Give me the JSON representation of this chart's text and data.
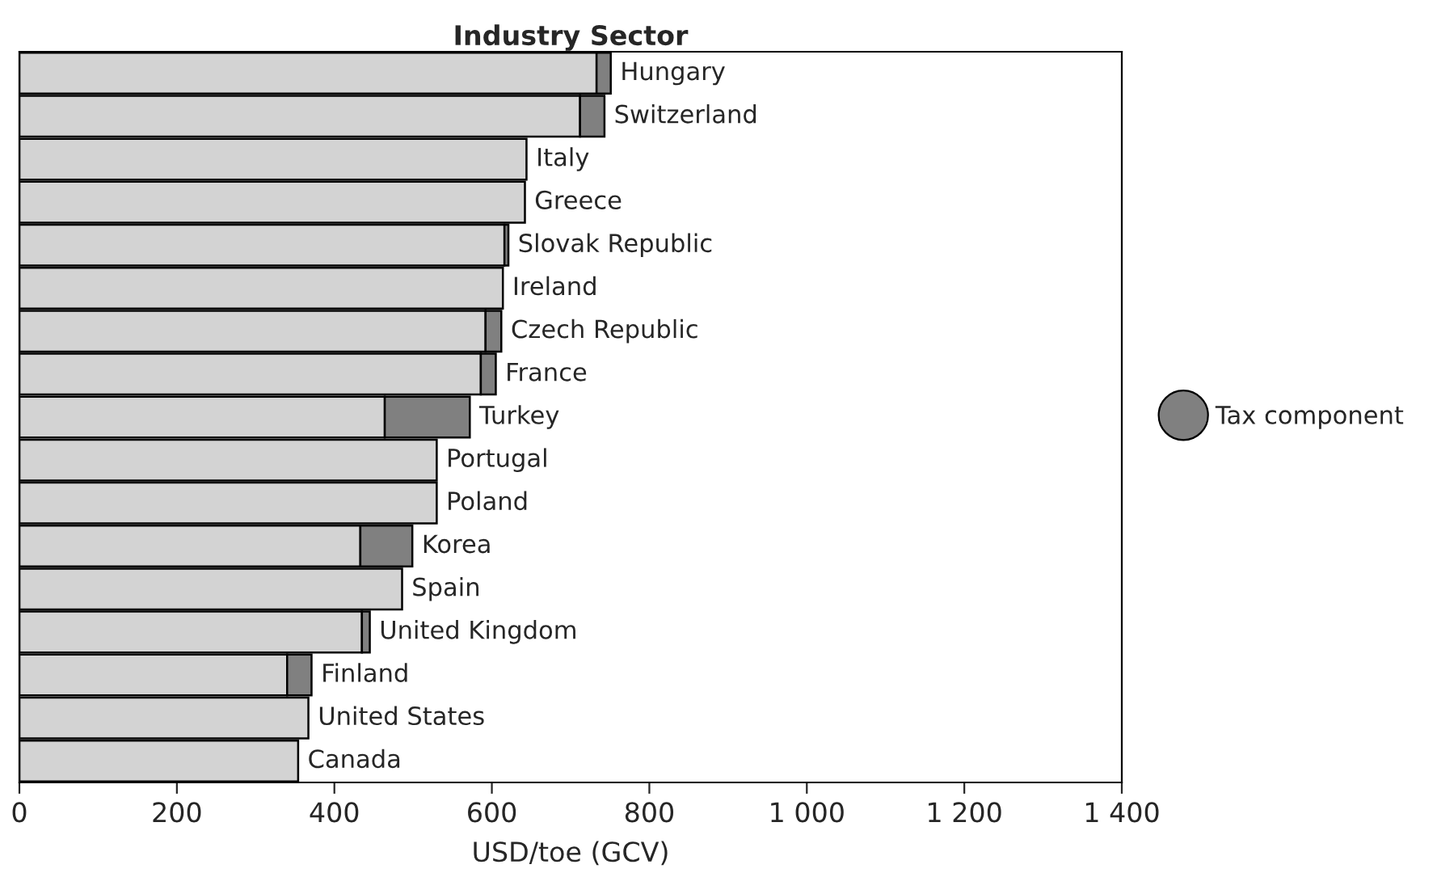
{
  "chart_data": {
    "type": "bar",
    "orientation": "horizontal",
    "stacked": true,
    "title": "Industry Sector",
    "xlabel": "USD/toe (GCV)",
    "categories": [
      "Hungary",
      "Switzerland",
      "Italy",
      "Greece",
      "Slovak Republic",
      "Ireland",
      "Czech Republic",
      "France",
      "Turkey",
      "Portugal",
      "Poland",
      "Korea",
      "Spain",
      "United Kingdom",
      "Finland",
      "United States",
      "Canada"
    ],
    "series": [
      {
        "color": "#d3d3d3",
        "values": [
          733,
          712,
          644,
          642,
          616,
          614,
          592,
          586,
          464,
          530,
          530,
          433,
          486,
          435,
          340,
          367,
          354
        ]
      },
      {
        "name": "Tax component",
        "color": "#808080",
        "values": [
          18,
          31,
          null,
          null,
          5,
          null,
          20,
          19,
          108,
          null,
          null,
          66,
          null,
          10,
          31,
          null,
          null
        ]
      }
    ],
    "xlim": [
      0,
      1400
    ],
    "xticks": [
      0,
      200,
      400,
      600,
      800,
      {
        "value": 1000,
        "label": "1 000"
      },
      {
        "value": 1200,
        "label": "1 200"
      },
      {
        "value": 1400,
        "label": "1 400"
      }
    ],
    "tick_labels": "x",
    "legend": "right"
  }
}
